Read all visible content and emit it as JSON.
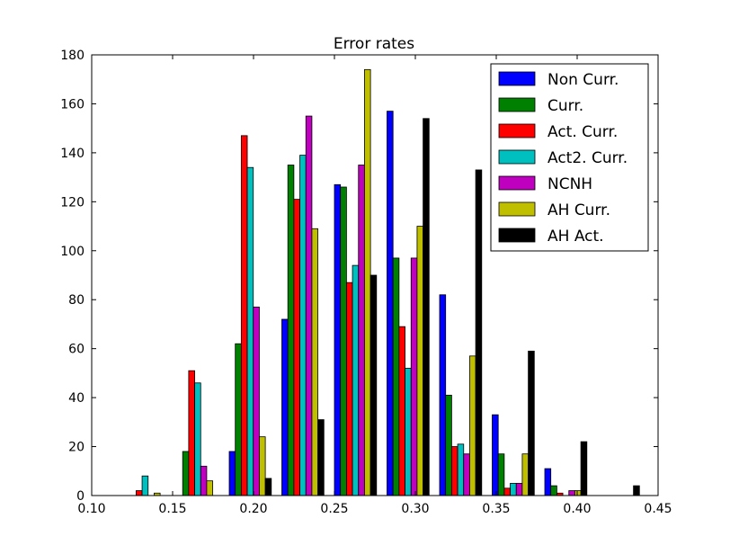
{
  "chart_data": {
    "type": "bar",
    "title": "Error rates",
    "xlabel": "",
    "ylabel": "",
    "xlim": [
      0.1,
      0.45
    ],
    "ylim": [
      0,
      180
    ],
    "grid": false,
    "legend_position": "top-right",
    "bin_starts": [
      0.12,
      0.1525,
      0.185,
      0.2175,
      0.25,
      0.2825,
      0.315,
      0.3475,
      0.38,
      0.4125
    ],
    "x_ticks": [
      {
        "value": 0.1,
        "label": "0.10"
      },
      {
        "value": 0.15,
        "label": "0.15"
      },
      {
        "value": 0.2,
        "label": "0.20"
      },
      {
        "value": 0.25,
        "label": "0.25"
      },
      {
        "value": 0.3,
        "label": "0.30"
      },
      {
        "value": 0.35,
        "label": "0.35"
      },
      {
        "value": 0.4,
        "label": "0.40"
      },
      {
        "value": 0.45,
        "label": "0.45"
      }
    ],
    "y_ticks": [
      {
        "value": 0,
        "label": "0"
      },
      {
        "value": 20,
        "label": "20"
      },
      {
        "value": 40,
        "label": "40"
      },
      {
        "value": 60,
        "label": "60"
      },
      {
        "value": 80,
        "label": "80"
      },
      {
        "value": 100,
        "label": "100"
      },
      {
        "value": 120,
        "label": "120"
      },
      {
        "value": 140,
        "label": "140"
      },
      {
        "value": 160,
        "label": "160"
      },
      {
        "value": 180,
        "label": "180"
      }
    ],
    "series": [
      {
        "name": "Non Curr.",
        "color": "#0000ff",
        "values": [
          0,
          0,
          18,
          72,
          127,
          157,
          82,
          33,
          11,
          0
        ]
      },
      {
        "name": "Curr.",
        "color": "#008000",
        "values": [
          0,
          18,
          62,
          135,
          126,
          97,
          41,
          17,
          4,
          0
        ]
      },
      {
        "name": "Act. Curr.",
        "color": "#ff0000",
        "values": [
          2,
          51,
          147,
          121,
          87,
          69,
          20,
          3,
          1,
          0
        ]
      },
      {
        "name": "Act2. Curr.",
        "color": "#00bfbf",
        "values": [
          8,
          46,
          134,
          139,
          94,
          52,
          21,
          5,
          0,
          0
        ]
      },
      {
        "name": "NCNH",
        "color": "#bf00bf",
        "values": [
          0,
          12,
          77,
          155,
          135,
          97,
          17,
          5,
          2,
          0
        ]
      },
      {
        "name": "AH Curr.",
        "color": "#bfbf00",
        "values": [
          1,
          6,
          24,
          109,
          174,
          110,
          57,
          17,
          2,
          0
        ]
      },
      {
        "name": "AH Act.",
        "color": "#000000",
        "values": [
          0,
          0,
          7,
          31,
          90,
          154,
          133,
          59,
          22,
          4
        ]
      }
    ]
  }
}
